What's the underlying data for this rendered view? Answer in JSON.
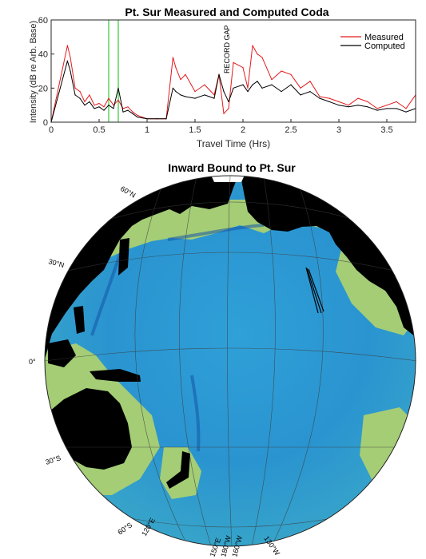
{
  "chart_data": [
    {
      "type": "line",
      "title": "Pt. Sur Measured and Computed Coda",
      "xlabel": "Travel Time (Hrs)",
      "ylabel": "Intensity (dB re Arb. Base)",
      "xlim": [
        0,
        3.8
      ],
      "ylim": [
        0,
        60
      ],
      "xticks": [
        0,
        0.5,
        1,
        1.5,
        2,
        2.5,
        3,
        3.5
      ],
      "xtick_labels": [
        "0",
        "0.5",
        "1",
        "1.5",
        "2",
        "2.5",
        "3",
        "3.5"
      ],
      "yticks": [
        0,
        20,
        40,
        60
      ],
      "ytick_labels": [
        "0",
        "20",
        "40",
        "60"
      ],
      "grid": false,
      "legend_position": "top-right",
      "annotation": "RECORD GAP",
      "annotation_x": 1.8,
      "markers": [
        {
          "x": 0.6,
          "color": "#33cc33"
        },
        {
          "x": 0.7,
          "color": "#33cc33"
        }
      ],
      "series": [
        {
          "name": "Measured",
          "color": "#e31a1c",
          "x": [
            0.0,
            0.17,
            0.2,
            0.25,
            0.3,
            0.35,
            0.4,
            0.45,
            0.5,
            0.55,
            0.6,
            0.65,
            0.7,
            0.75,
            0.8,
            0.85,
            0.9,
            1.0,
            1.1,
            1.2,
            1.27,
            1.3,
            1.35,
            1.4,
            1.5,
            1.6,
            1.7,
            1.75,
            1.8,
            1.85,
            1.9,
            2.0,
            2.05,
            2.1,
            2.15,
            2.2,
            2.3,
            2.4,
            2.5,
            2.6,
            2.7,
            2.8,
            2.9,
            3.0,
            3.1,
            3.2,
            3.3,
            3.4,
            3.5,
            3.6,
            3.7,
            3.8
          ],
          "y": [
            0,
            45,
            38,
            20,
            18,
            12,
            16,
            10,
            11,
            9,
            14,
            10,
            13,
            8,
            9,
            6,
            4,
            2,
            2,
            2,
            38,
            32,
            25,
            28,
            18,
            22,
            16,
            28,
            5,
            8,
            35,
            32,
            20,
            45,
            40,
            38,
            25,
            30,
            28,
            20,
            24,
            15,
            14,
            12,
            10,
            14,
            12,
            8,
            10,
            12,
            8,
            16
          ]
        },
        {
          "name": "Computed",
          "color": "#000000",
          "x": [
            0.0,
            0.17,
            0.2,
            0.25,
            0.3,
            0.35,
            0.4,
            0.45,
            0.5,
            0.55,
            0.6,
            0.65,
            0.7,
            0.75,
            0.8,
            0.85,
            0.9,
            1.0,
            1.1,
            1.2,
            1.27,
            1.3,
            1.35,
            1.4,
            1.5,
            1.6,
            1.7,
            1.75,
            1.8,
            1.85,
            1.9,
            2.0,
            2.05,
            2.1,
            2.15,
            2.2,
            2.3,
            2.4,
            2.5,
            2.6,
            2.7,
            2.8,
            2.9,
            3.0,
            3.1,
            3.2,
            3.3,
            3.4,
            3.5,
            3.6,
            3.7,
            3.8
          ],
          "y": [
            0,
            36,
            30,
            16,
            14,
            10,
            12,
            8,
            9,
            7,
            10,
            8,
            20,
            6,
            7,
            5,
            3,
            2,
            2,
            2,
            20,
            18,
            16,
            15,
            14,
            16,
            14,
            28,
            18,
            12,
            20,
            22,
            18,
            22,
            24,
            20,
            22,
            18,
            22,
            16,
            18,
            14,
            12,
            10,
            9,
            10,
            9,
            7,
            8,
            8,
            6,
            8
          ]
        }
      ]
    },
    {
      "type": "map",
      "title": "Inward Bound to Pt. Sur",
      "projection": "orthographic",
      "lat_labels": [
        "60°N",
        "30°N",
        "0°",
        "30°S",
        "60°S"
      ],
      "lon_labels": [
        "120°E",
        "150°E",
        "180°W",
        "160°W",
        "130°W"
      ],
      "colors": {
        "land": "#000000",
        "ocean_deep": "#1a78c8",
        "ocean_mid": "#2fa0d8",
        "shelf": "#a4cd76",
        "ice": "#ffffff",
        "graticule": "#3c3c3c"
      }
    }
  ]
}
